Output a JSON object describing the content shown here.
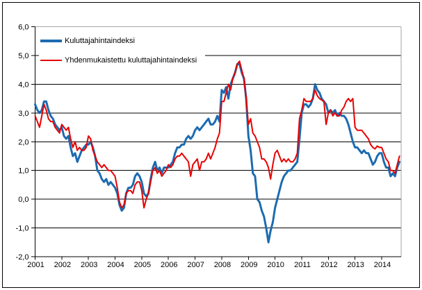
{
  "figure": {
    "background_color": "#ffffff",
    "border_color": "#000000"
  },
  "chart_data": {
    "type": "line",
    "title": "",
    "frequency": "monthly",
    "x_start": "2001-01",
    "x_end": "2014-09",
    "x_tick_labels": [
      "2001",
      "2002",
      "2003",
      "2004",
      "2005",
      "2006",
      "2007",
      "2008",
      "2009",
      "2010",
      "2011",
      "2012",
      "2013",
      "2014"
    ],
    "y_tick_labels": [
      "6,0",
      "5,0",
      "4,0",
      "3,0",
      "2,0",
      "1,0",
      "0,0",
      "-1,0",
      "-2,0"
    ],
    "ylim": [
      -2,
      6
    ],
    "grid": "horizontal",
    "gridline_color": "#000000",
    "frame_color": "#a6a6a6",
    "legend_position": "top-left",
    "series": [
      {
        "name": "Kuluttajahintaindeksi",
        "color": "#1c6bb0",
        "values": [
          3.3,
          3.1,
          3.0,
          3.1,
          3.4,
          3.4,
          3.1,
          2.9,
          2.8,
          2.6,
          2.5,
          2.4,
          2.5,
          2.2,
          2.1,
          2.2,
          1.8,
          1.5,
          1.6,
          1.3,
          1.5,
          1.7,
          1.8,
          1.9,
          1.9,
          2.0,
          1.8,
          1.5,
          1.0,
          0.9,
          0.7,
          0.6,
          0.7,
          0.5,
          0.6,
          0.5,
          0.4,
          0.2,
          -0.2,
          -0.4,
          -0.3,
          0.2,
          0.4,
          0.4,
          0.5,
          0.8,
          0.9,
          0.8,
          0.6,
          0.2,
          0.1,
          0.2,
          0.7,
          1.1,
          1.3,
          1.0,
          1.1,
          0.9,
          1.1,
          1.1,
          1.1,
          1.2,
          1.3,
          1.6,
          1.8,
          1.8,
          1.9,
          1.9,
          2.1,
          2.2,
          2.1,
          2.2,
          2.4,
          2.5,
          2.4,
          2.5,
          2.6,
          2.7,
          2.8,
          2.6,
          2.6,
          2.7,
          2.9,
          2.7,
          3.8,
          3.7,
          3.9,
          3.5,
          4.0,
          4.2,
          4.4,
          4.7,
          4.7,
          4.4,
          4.2,
          3.5,
          2.2,
          1.7,
          0.9,
          0.8,
          0.0,
          -0.1,
          -0.4,
          -0.6,
          -1.0,
          -1.5,
          -1.1,
          -0.8,
          -0.3,
          0.0,
          0.3,
          0.6,
          0.8,
          0.9,
          1.0,
          1.0,
          1.1,
          1.2,
          1.3,
          2.1,
          3.0,
          3.3,
          3.3,
          3.2,
          3.3,
          3.5,
          4.0,
          3.8,
          3.7,
          3.5,
          3.4,
          3.3,
          3.0,
          3.1,
          3.0,
          3.1,
          2.9,
          3.0,
          2.9,
          2.9,
          2.8,
          2.6,
          2.3,
          2.0,
          1.8,
          1.8,
          1.7,
          1.6,
          1.7,
          1.6,
          1.6,
          1.4,
          1.2,
          1.3,
          1.5,
          1.6,
          1.6,
          1.3,
          1.1,
          1.1,
          0.8,
          0.9,
          0.8,
          1.1,
          1.3
        ]
      },
      {
        "name": "Yhdenmukaistettu kuluttajahintaindeksi",
        "color": "#e60000",
        "values": [
          2.9,
          2.7,
          2.5,
          2.9,
          3.3,
          3.1,
          2.8,
          2.7,
          2.7,
          2.5,
          2.4,
          2.3,
          2.6,
          2.5,
          2.4,
          2.5,
          2.1,
          1.8,
          2.0,
          1.7,
          1.8,
          1.7,
          1.7,
          1.8,
          2.2,
          2.1,
          1.7,
          1.5,
          1.3,
          1.2,
          1.1,
          1.2,
          1.1,
          1.0,
          1.0,
          0.9,
          0.8,
          0.4,
          -0.1,
          -0.3,
          -0.2,
          0.2,
          0.3,
          0.3,
          0.2,
          0.5,
          0.6,
          0.6,
          0.3,
          -0.3,
          0.0,
          0.2,
          0.6,
          1.0,
          1.1,
          0.9,
          1.0,
          0.8,
          0.9,
          1.0,
          1.2,
          1.1,
          1.2,
          1.4,
          1.5,
          1.5,
          1.6,
          1.5,
          1.4,
          1.3,
          0.8,
          1.2,
          1.3,
          1.4,
          1.0,
          1.3,
          1.3,
          1.4,
          1.6,
          1.4,
          1.6,
          1.8,
          2.1,
          2.3,
          3.4,
          3.4,
          3.7,
          4.0,
          3.8,
          4.2,
          4.4,
          4.7,
          4.8,
          4.5,
          4.2,
          3.5,
          2.6,
          2.8,
          2.3,
          2.2,
          2.0,
          1.8,
          1.4,
          1.4,
          1.3,
          1.1,
          0.7,
          1.2,
          1.6,
          1.7,
          1.5,
          1.3,
          1.4,
          1.3,
          1.4,
          1.3,
          1.3,
          1.4,
          1.6,
          2.8,
          3.1,
          3.5,
          3.4,
          3.4,
          3.4,
          3.5,
          3.8,
          3.6,
          3.5,
          3.45,
          3.4,
          2.6,
          3.0,
          3.1,
          2.9,
          3.0,
          2.9,
          2.9,
          3.1,
          3.2,
          3.4,
          3.5,
          3.4,
          3.5,
          2.5,
          2.4,
          2.4,
          2.4,
          2.3,
          2.2,
          2.1,
          1.9,
          1.8,
          1.75,
          1.85,
          1.8,
          1.8,
          1.6,
          1.4,
          1.3,
          1.0,
          1.0,
          0.9,
          1.2,
          1.5
        ]
      }
    ]
  }
}
